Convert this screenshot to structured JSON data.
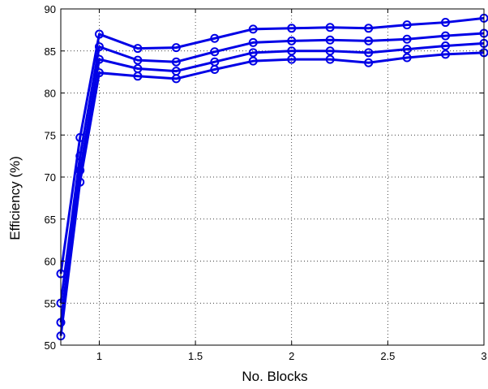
{
  "chart_data": {
    "type": "line",
    "title": "",
    "xlabel": "No. Blocks",
    "ylabel": "Efficiency (%)",
    "xlim": [
      0.8,
      3
    ],
    "ylim": [
      50,
      90
    ],
    "xticks": [
      1,
      1.5,
      2,
      2.5,
      3
    ],
    "xtick_labels": [
      "1",
      "1.5",
      "2",
      "2.5",
      "3"
    ],
    "yticks": [
      50,
      55,
      60,
      65,
      70,
      75,
      80,
      85,
      90
    ],
    "ytick_labels": [
      "50",
      "55",
      "60",
      "65",
      "70",
      "75",
      "80",
      "85",
      "90"
    ],
    "grid": true,
    "grid_style": "dotted",
    "line_color": "#0000e6",
    "marker": "circle",
    "x": [
      0.8,
      0.9,
      1.0,
      1.2,
      1.4,
      1.6,
      1.8,
      2.0,
      2.2,
      2.4,
      2.6,
      2.8,
      3.0
    ],
    "series": [
      {
        "values": [
          58.5,
          74.7,
          87.0,
          85.3,
          85.4,
          86.5,
          87.6,
          87.7,
          87.8,
          87.7,
          88.1,
          88.4,
          88.9
        ]
      },
      {
        "values": [
          55.0,
          72.5,
          85.5,
          83.9,
          83.7,
          84.9,
          86.0,
          86.2,
          86.3,
          86.2,
          86.4,
          86.8,
          87.1
        ]
      },
      {
        "values": [
          52.7,
          70.8,
          84.0,
          82.9,
          82.6,
          83.7,
          84.8,
          85.0,
          85.0,
          84.8,
          85.2,
          85.6,
          85.9
        ]
      },
      {
        "values": [
          51.1,
          69.4,
          82.4,
          82.0,
          81.7,
          82.8,
          83.8,
          84.0,
          84.0,
          83.6,
          84.2,
          84.6,
          84.8
        ]
      }
    ]
  }
}
